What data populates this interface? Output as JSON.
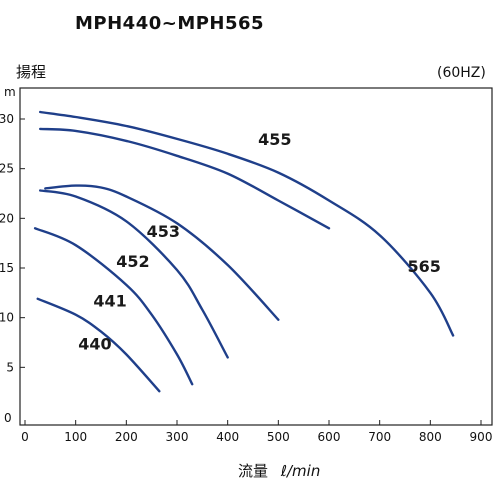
{
  "title": "MPH440~MPH565",
  "chart_data": {
    "type": "line",
    "title": "MPH440~MPH565",
    "ylabel": "揚程",
    "y_unit": "m",
    "xlabel": "流量",
    "x_unit": "ℓ/min",
    "condition": "(60HZ)",
    "xlim": [
      0,
      900
    ],
    "ylim": [
      0,
      32
    ],
    "x_ticks": [
      "0",
      "100",
      "200",
      "300",
      "400",
      "500",
      "600",
      "700",
      "800",
      "900"
    ],
    "y_ticks": [
      "5",
      "10",
      "15",
      "20",
      "25",
      "30"
    ],
    "y_zero_tick": "0",
    "grid": false,
    "line_color": "#1f3f8a",
    "series": [
      {
        "name": "455",
        "x": [
          30,
          100,
          200,
          300,
          400,
          500,
          600
        ],
        "y": [
          29.0,
          28.8,
          27.8,
          26.3,
          24.5,
          21.8,
          19.0
        ]
      },
      {
        "name": "565",
        "x": [
          30,
          100,
          200,
          300,
          400,
          500,
          600,
          700,
          800,
          845
        ],
        "y": [
          30.7,
          30.2,
          29.3,
          28.0,
          26.5,
          24.6,
          21.8,
          18.3,
          12.5,
          8.2
        ]
      },
      {
        "name": "453",
        "x": [
          40,
          100,
          150,
          200,
          300,
          400,
          500
        ],
        "y": [
          23.0,
          23.3,
          23.1,
          22.2,
          19.5,
          15.3,
          9.8
        ]
      },
      {
        "name": "452",
        "x": [
          30,
          100,
          200,
          300,
          350,
          400
        ],
        "y": [
          22.8,
          22.2,
          19.7,
          14.8,
          10.8,
          6.0
        ]
      },
      {
        "name": "441",
        "x": [
          20,
          100,
          200,
          250,
          300,
          330
        ],
        "y": [
          19.0,
          17.3,
          13.3,
          10.3,
          6.3,
          3.3
        ]
      },
      {
        "name": "440",
        "x": [
          25,
          100,
          150,
          200,
          265
        ],
        "y": [
          11.9,
          10.3,
          8.6,
          6.3,
          2.6
        ]
      }
    ],
    "label_positions_data": {
      "455": [
        460,
        27.4
      ],
      "565": [
        755,
        14.6
      ],
      "453": [
        240,
        18.1
      ],
      "452": [
        180,
        15.1
      ],
      "441": [
        135,
        11.1
      ],
      "440": [
        105,
        6.8
      ]
    }
  }
}
